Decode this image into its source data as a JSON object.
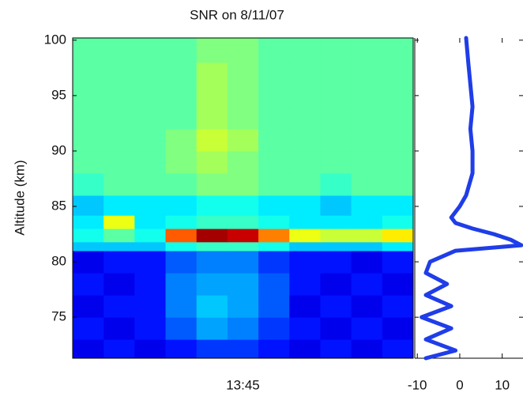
{
  "chart_data": [
    {
      "type": "heatmap",
      "title": "SNR on 8/11/07",
      "ylabel": "Altitude (km)",
      "categories": [
        null,
        null,
        null,
        null,
        null,
        "13:45",
        null,
        null,
        null,
        null,
        null
      ],
      "bins": [
        71.3,
        73,
        75,
        77,
        79,
        81,
        81.8,
        83,
        84.2,
        86,
        88,
        90,
        92,
        94,
        96,
        98,
        100.2
      ],
      "values": [
        [
          -9,
          -8,
          -9,
          -8,
          -7,
          -7,
          -8,
          -9,
          -8,
          -9,
          -8
        ],
        [
          -8,
          -9,
          -8,
          -6,
          -4,
          -5,
          -7,
          -8,
          -9,
          -8,
          -9
        ],
        [
          -9,
          -8,
          -8,
          -5,
          -3,
          -4,
          -6,
          -9,
          -8,
          -9,
          -8
        ],
        [
          -8,
          -9,
          -8,
          -5,
          -4,
          -4,
          -6,
          -8,
          -9,
          -8,
          -9
        ],
        [
          -9,
          -8,
          -8,
          -6,
          -5,
          -5,
          -7,
          -8,
          -8,
          -9,
          -8
        ],
        [
          -3,
          -3,
          -3,
          -1,
          0,
          0,
          -1,
          -3,
          -3,
          -3,
          -2
        ],
        [
          -1,
          1,
          -1,
          10,
          15,
          14,
          9,
          5,
          4,
          4,
          6
        ],
        [
          -2,
          5,
          -2,
          -1,
          0,
          0,
          -1,
          -2,
          -2,
          -2,
          -1
        ],
        [
          -3,
          -2,
          -2,
          -2,
          -1,
          -1,
          -2,
          -2,
          -3,
          -2,
          -2
        ],
        [
          0,
          1,
          1,
          1,
          2,
          2,
          1,
          1,
          0,
          1,
          1
        ],
        [
          1,
          1,
          1,
          2,
          3,
          2,
          1,
          1,
          1,
          1,
          1
        ],
        [
          1,
          1,
          1,
          2,
          4,
          3,
          1,
          1,
          1,
          1,
          1
        ],
        [
          1,
          1,
          1,
          1,
          3,
          2,
          1,
          1,
          1,
          1,
          1
        ],
        [
          1,
          1,
          1,
          1,
          3,
          2,
          1,
          1,
          1,
          1,
          1
        ],
        [
          1,
          1,
          1,
          1,
          3,
          2,
          1,
          1,
          1,
          1,
          1
        ],
        [
          1,
          1,
          1,
          1,
          2,
          2,
          1,
          1,
          1,
          1,
          1
        ]
      ],
      "ylim": [
        71.3,
        100.2
      ],
      "yticks": [
        75,
        80,
        85,
        90,
        95,
        100
      ],
      "colormap": "jet",
      "clim": [
        -12,
        16
      ]
    },
    {
      "type": "line",
      "color": "#1f3de8",
      "altitude": [
        71.3,
        72,
        73,
        74,
        75,
        76,
        77,
        78,
        79,
        80,
        80.5,
        81,
        81.5,
        82,
        82.5,
        83,
        83.5,
        84,
        85,
        86,
        88,
        90,
        92,
        94,
        96,
        98,
        100.2
      ],
      "values": [
        -8,
        -1,
        -8,
        -2,
        -9,
        -2,
        -8,
        -3,
        -8,
        -7,
        -4,
        -1,
        14.5,
        12,
        8,
        3,
        -1,
        -2,
        0,
        1.5,
        3,
        3,
        2.5,
        3,
        2.5,
        2,
        1.5
      ],
      "xlim": [
        -10.6,
        14.9
      ],
      "xticks": [
        -10,
        0,
        10
      ],
      "ylim": [
        71.3,
        100.2
      ],
      "yticks": [
        75,
        80,
        85,
        90,
        95,
        100
      ]
    }
  ]
}
